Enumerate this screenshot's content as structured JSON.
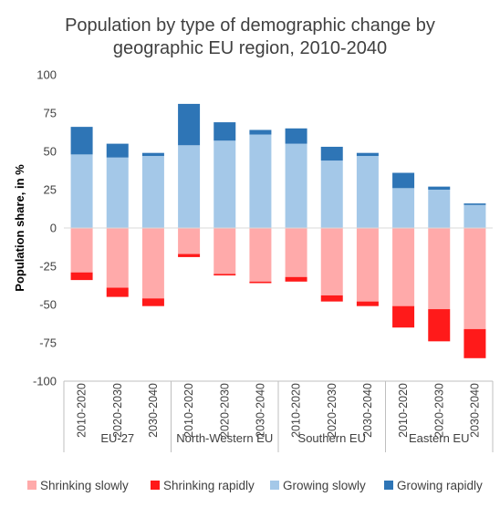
{
  "chart_data": {
    "type": "bar",
    "stacked": true,
    "title_lines": [
      "Population by type of demographic change by",
      "geographic EU region, 2010-2040"
    ],
    "ylabel": "Population share, in %",
    "xlabel": "",
    "ylim": [
      -100,
      100
    ],
    "yticks": [
      100,
      75,
      50,
      25,
      0,
      -25,
      -50,
      -75,
      -100
    ],
    "ytick_labels": [
      "100",
      "75",
      "50",
      "25",
      "0",
      "-25",
      "-50",
      "-75",
      "-100"
    ],
    "grid": false,
    "legend_position": "bottom",
    "groups": [
      {
        "name": "EU-27",
        "categories": [
          "2010-2020",
          "2020-2030",
          "2030-2040"
        ]
      },
      {
        "name": "North-Western EU",
        "categories": [
          "2010-2020",
          "2020-2030",
          "2030-2040"
        ]
      },
      {
        "name": "Southern EU",
        "categories": [
          "2010-2020",
          "2020-2030",
          "2030-2040"
        ]
      },
      {
        "name": "Eastern EU",
        "categories": [
          "2010-2020",
          "2020-2030",
          "2030-2040"
        ]
      }
    ],
    "series": [
      {
        "name": "Shrinking slowly",
        "color": "#ffaaaa",
        "direction": "negative",
        "values": [
          -29,
          -39,
          -46,
          -17,
          -30,
          -35,
          -32,
          -44,
          -48,
          -51,
          -53,
          -66
        ]
      },
      {
        "name": "Shrinking rapidly",
        "color": "#ff1a1a",
        "direction": "negative",
        "values": [
          -5,
          -6,
          -5,
          -2,
          -1,
          -1,
          -3,
          -4,
          -3,
          -14,
          -21,
          -19
        ]
      },
      {
        "name": "Growing slowly",
        "color": "#a4c8e8",
        "direction": "positive",
        "values": [
          48,
          46,
          47,
          54,
          57,
          61,
          55,
          44,
          47,
          26,
          25,
          15
        ]
      },
      {
        "name": "Growing rapidly",
        "color": "#2e75b6",
        "direction": "positive",
        "values": [
          18,
          9,
          2,
          27,
          12,
          3,
          10,
          9,
          2,
          10,
          2,
          1
        ]
      }
    ]
  }
}
